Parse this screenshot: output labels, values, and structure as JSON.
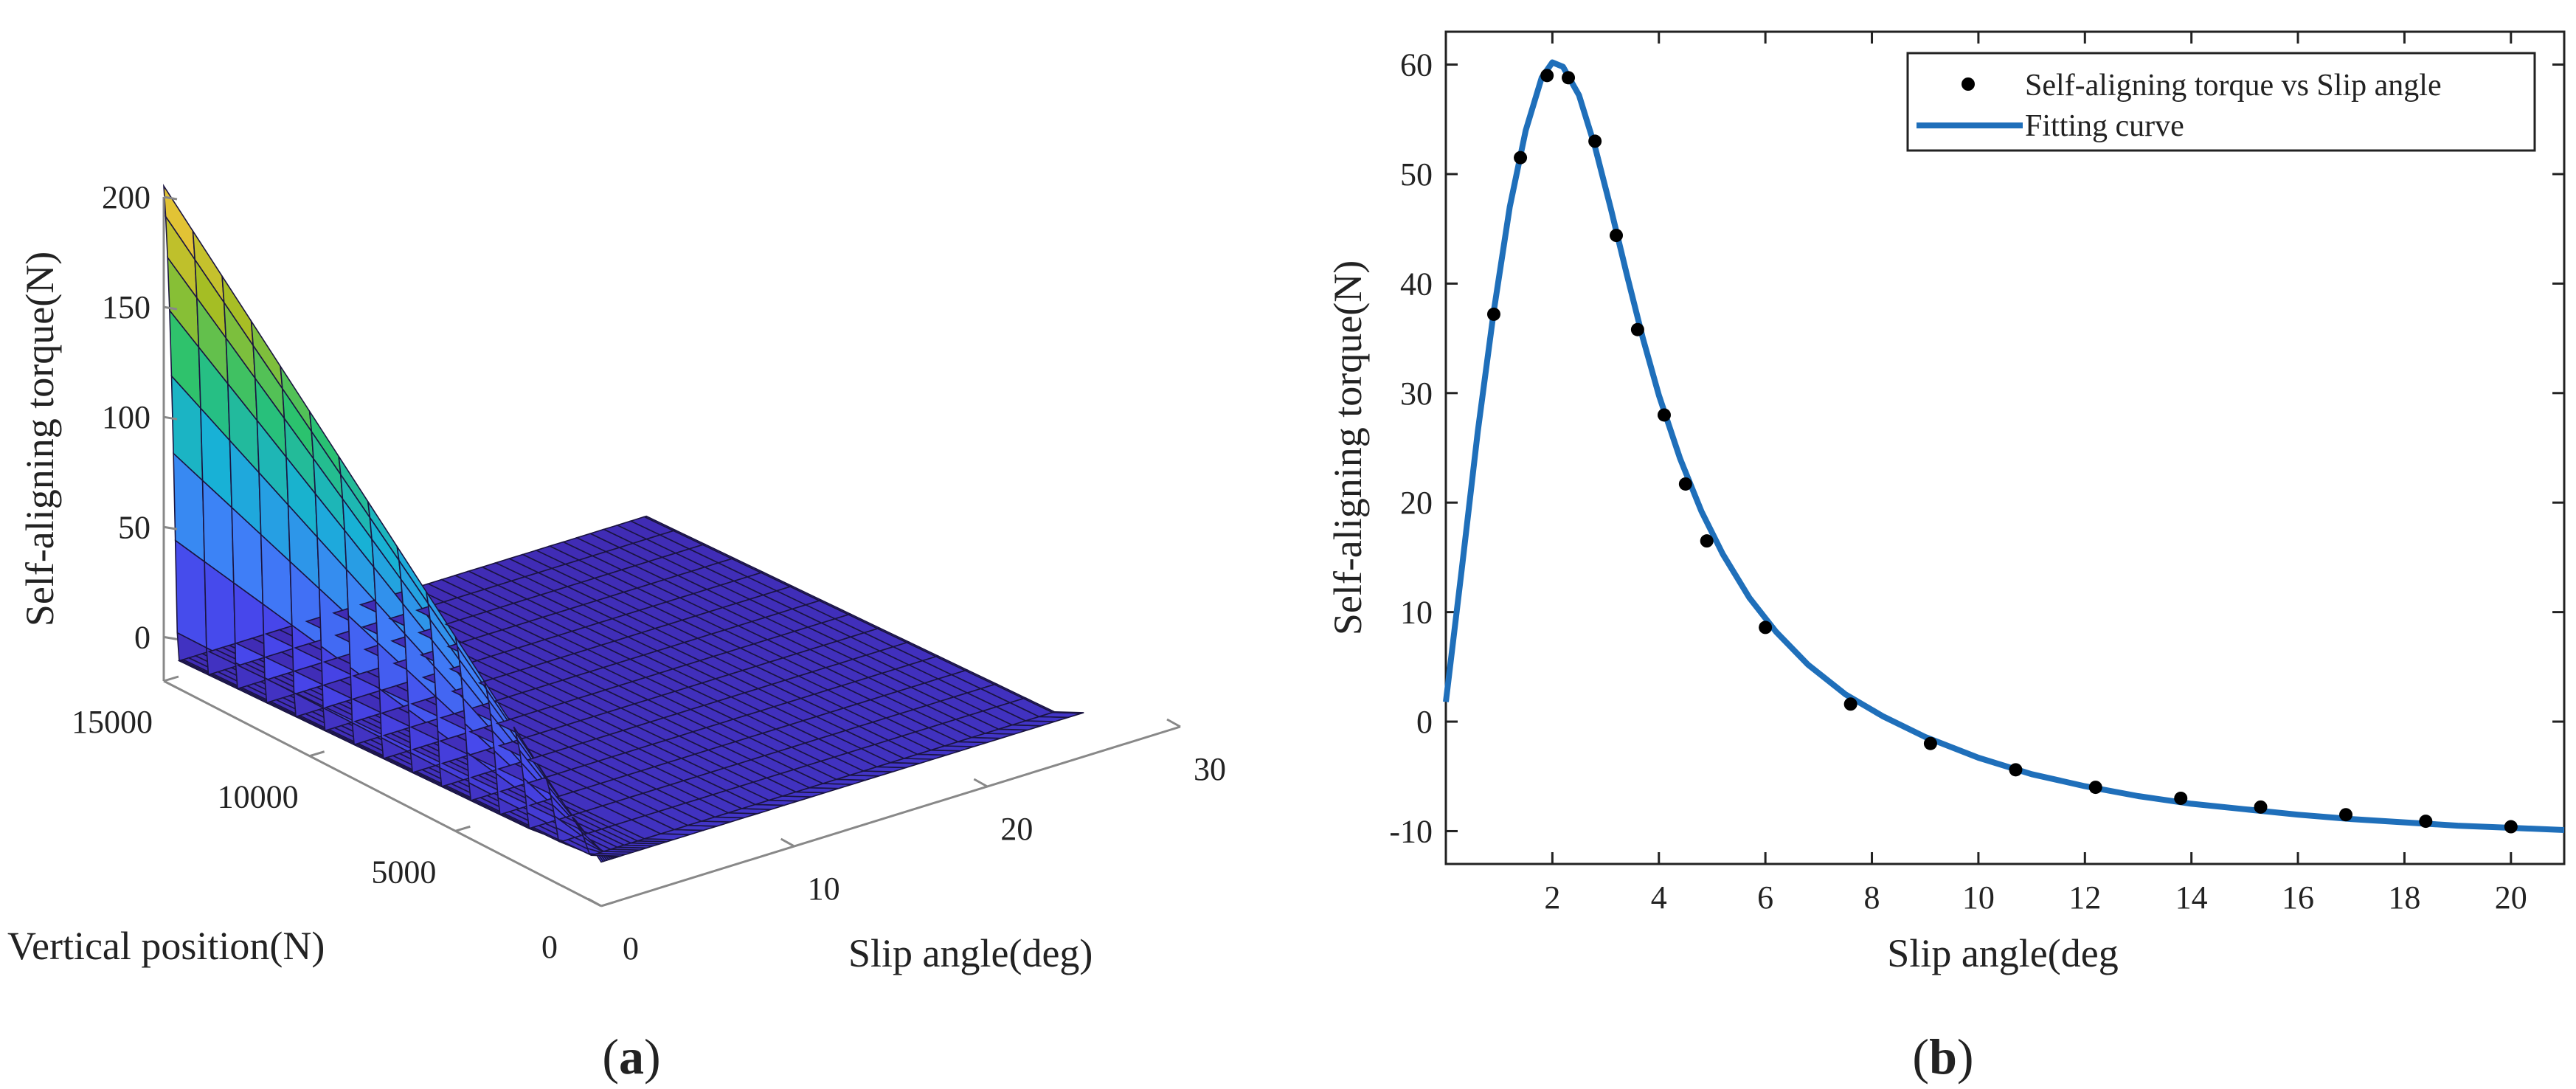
{
  "panels": [
    {
      "label_open": "(",
      "label_letter": "a",
      "label_close": ")"
    },
    {
      "label_open": "(",
      "label_letter": "b",
      "label_close": ")"
    }
  ],
  "chart_data": [
    {
      "type": "surface",
      "xlabel": "Slip angle(deg)",
      "ylabel": "Vertical position(N)",
      "zlabel": "Self-aligning torque(N)",
      "x_ticks": [
        "0",
        "10",
        "20",
        "30"
      ],
      "y_ticks": [
        "0",
        "5000",
        "10000",
        "15000"
      ],
      "z_ticks": [
        "0",
        "50",
        "100",
        "150",
        "200"
      ],
      "xlim": [
        0,
        30
      ],
      "ylim": [
        0,
        15000
      ],
      "zlim": [
        -20,
        200
      ],
      "colormap": [
        "#3e26a8",
        "#4746eb",
        "#3f80f8",
        "#18b1d6",
        "#2ac26f",
        "#a5be24",
        "#f5c53a"
      ],
      "grid": false
    },
    {
      "type": "line+scatter",
      "xlabel": "Slip angle(deg",
      "ylabel": "Self-aligning torque(N)",
      "xlim": [
        0,
        21
      ],
      "ylim": [
        -13,
        63
      ],
      "x_ticks": [
        2,
        4,
        6,
        8,
        10,
        12,
        14,
        16,
        18,
        20
      ],
      "y_ticks": [
        -10,
        0,
        10,
        20,
        30,
        40,
        50,
        60
      ],
      "legend_position": "top-right",
      "grid": false,
      "series": [
        {
          "name": "Self-aligning torque vs Slip angle",
          "kind": "scatter",
          "color": "#000000",
          "x": [
            0.9,
            1.4,
            1.9,
            2.3,
            2.8,
            3.2,
            3.6,
            4.1,
            4.5,
            4.9,
            6.0,
            7.6,
            9.1,
            10.7,
            12.2,
            13.8,
            15.3,
            16.9,
            18.4,
            20.0
          ],
          "y": [
            37.2,
            51.5,
            59.0,
            58.8,
            53.0,
            44.4,
            35.8,
            28.0,
            21.7,
            16.5,
            8.6,
            1.6,
            -2.0,
            -4.4,
            -6.0,
            -7.0,
            -7.8,
            -8.5,
            -9.1,
            -9.6
          ]
        },
        {
          "name": "Fitting curve",
          "kind": "line",
          "color": "#1f6fba",
          "x": [
            0.0,
            0.3,
            0.6,
            0.9,
            1.2,
            1.5,
            1.8,
            2.0,
            2.2,
            2.5,
            2.8,
            3.1,
            3.4,
            3.7,
            4.0,
            4.4,
            4.8,
            5.2,
            5.7,
            6.2,
            6.8,
            7.5,
            8.2,
            9.0,
            10.0,
            11.0,
            12.0,
            13.0,
            14.0,
            15.0,
            16.0,
            17.0,
            18.0,
            19.0,
            20.0,
            21.0
          ],
          "y": [
            1.8,
            14.0,
            26.5,
            37.5,
            47.0,
            54.0,
            58.8,
            60.2,
            59.8,
            57.2,
            52.5,
            46.8,
            40.8,
            35.0,
            29.8,
            24.0,
            19.2,
            15.3,
            11.3,
            8.2,
            5.2,
            2.5,
            0.5,
            -1.4,
            -3.3,
            -4.8,
            -5.9,
            -6.8,
            -7.5,
            -8.0,
            -8.5,
            -8.9,
            -9.2,
            -9.5,
            -9.7,
            -9.9
          ]
        }
      ]
    }
  ]
}
